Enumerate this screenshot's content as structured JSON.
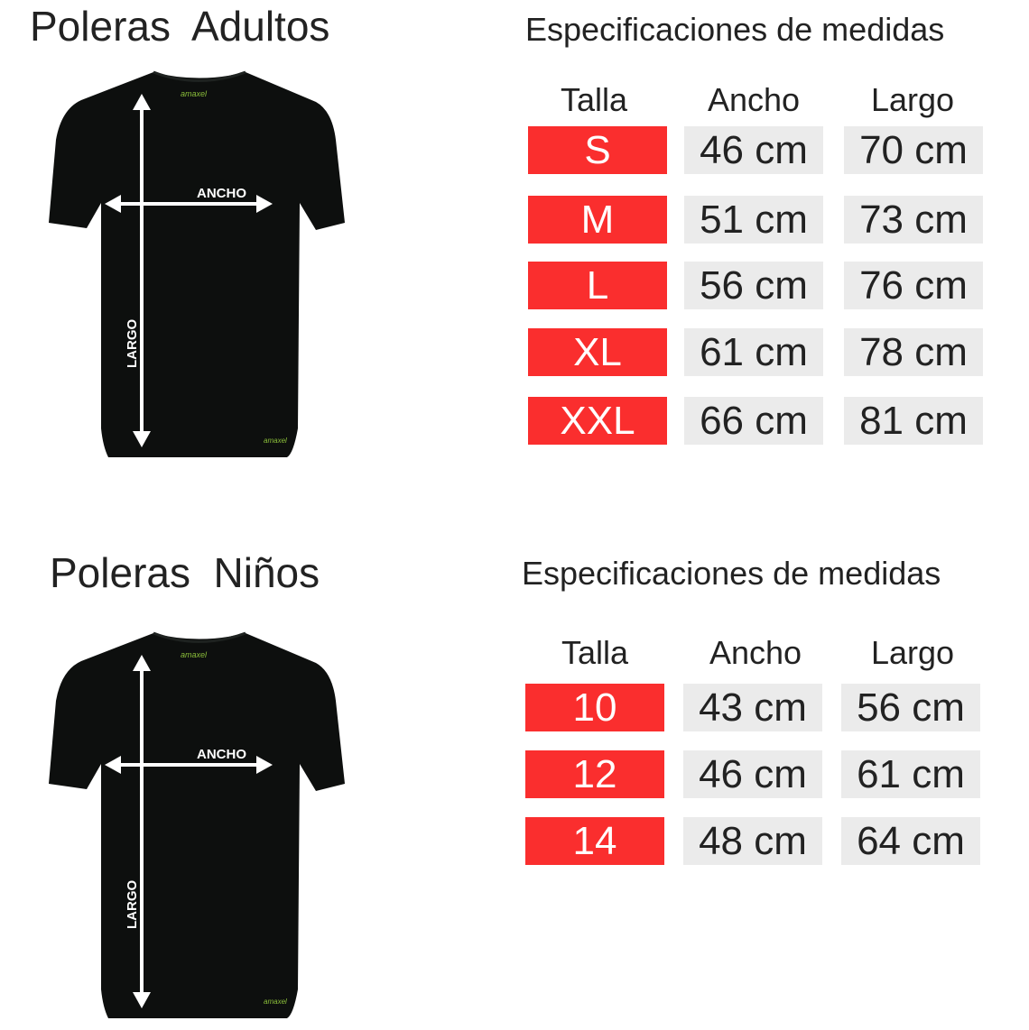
{
  "colors": {
    "size_cell": "#fa2e2e",
    "value_cell": "#ebebeb",
    "shirt": "#0d0f0e",
    "arrow": "#ffffff",
    "logo": "#8bbf3a"
  },
  "adults": {
    "title": "Poleras  Adultos",
    "spec_title": "Especificaciones de medidas",
    "diagram": {
      "ancho_label": "ANCHO",
      "largo_label": "LARGO",
      "logo": "amaxel"
    },
    "headers": [
      "Talla",
      "Ancho",
      "Largo"
    ],
    "rows": [
      {
        "talla": "S",
        "ancho": "46 cm",
        "largo": "70 cm"
      },
      {
        "talla": "M",
        "ancho": "51 cm",
        "largo": "73 cm"
      },
      {
        "talla": "L",
        "ancho": "56 cm",
        "largo": "76 cm"
      },
      {
        "talla": "XL",
        "ancho": "61 cm",
        "largo": "78 cm"
      },
      {
        "talla": "XXL",
        "ancho": "66 cm",
        "largo": "81 cm"
      }
    ]
  },
  "kids": {
    "title": "Poleras  Niños",
    "spec_title": "Especificaciones de medidas",
    "diagram": {
      "ancho_label": "ANCHO",
      "largo_label": "LARGO",
      "logo": "amaxel"
    },
    "headers": [
      "Talla",
      "Ancho",
      "Largo"
    ],
    "rows": [
      {
        "talla": "10",
        "ancho": "43 cm",
        "largo": "56 cm"
      },
      {
        "talla": "12",
        "ancho": "46 cm",
        "largo": "61 cm"
      },
      {
        "talla": "14",
        "ancho": "48 cm",
        "largo": "64 cm"
      }
    ]
  }
}
